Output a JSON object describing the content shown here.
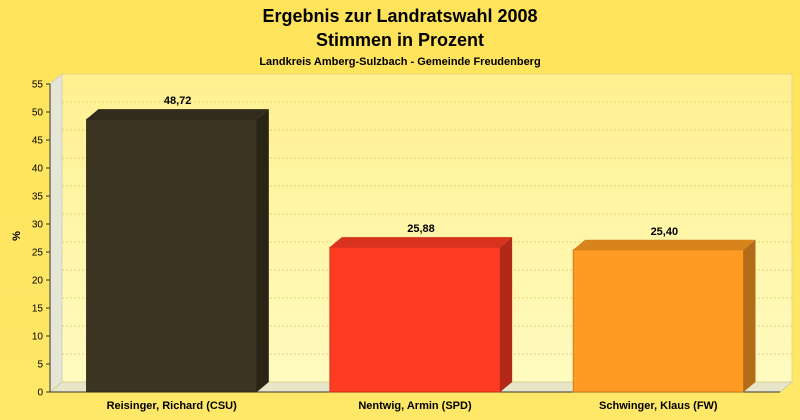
{
  "chart_data": {
    "type": "bar",
    "title": "Ergebnis zur Landratswahl 2008",
    "subtitle_line2": "Stimmen in Prozent",
    "subtitle": "Landkreis Amberg-Sulzbach - Gemeinde Freudenberg",
    "ylabel": "%",
    "xlabel": "",
    "ylim": [
      0,
      55
    ],
    "yticks": [
      "0",
      "5",
      "10",
      "15",
      "20",
      "25",
      "30",
      "35",
      "40",
      "45",
      "50",
      "55"
    ],
    "categories": [
      "Reisinger, Richard (CSU)",
      "Nentwig, Armin (SPD)",
      "Schwinger, Klaus (FW)"
    ],
    "values": [
      48.72,
      25.88,
      25.4
    ],
    "value_labels": [
      "48,72",
      "25,88",
      "25,40"
    ],
    "colors": [
      "#3a3420",
      "#ff3b22",
      "#ff9a22"
    ],
    "grid": true,
    "legend": "none"
  },
  "colors": {
    "background": "#ffe45c",
    "plot_background": "#fff7a0",
    "grid": "#e6d67a"
  }
}
